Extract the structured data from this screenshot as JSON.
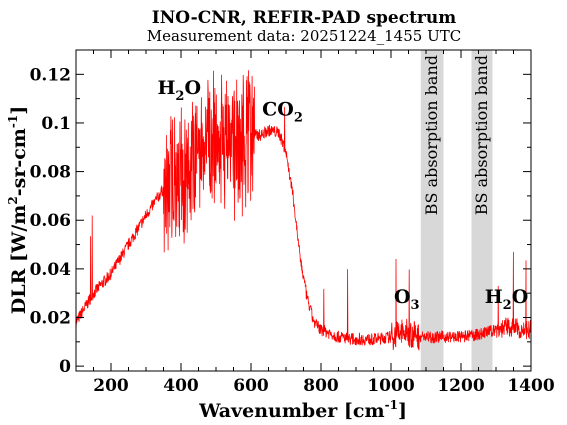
{
  "chart_data": {
    "type": "line",
    "title": "INO-CNR, REFIR-PAD spectrum",
    "subtitle": "Measurement data: 20251224_1455 UTC",
    "xlabel": {
      "main": "Wavenumber [cm",
      "sup": "-1",
      "close": "]"
    },
    "ylabel": {
      "main": "DLR [W/m",
      "sup1": "2",
      "mid": "-sr-cm",
      "sup2": "-1",
      "close": "]"
    },
    "xlim": [
      100,
      1400
    ],
    "ylim": [
      -0.002,
      0.13
    ],
    "xticks": [
      200,
      400,
      600,
      800,
      1000,
      1200,
      1400
    ],
    "xtick_labels": [
      "200",
      "400",
      "600",
      "800",
      "1000",
      "1200",
      "1400"
    ],
    "yticks": [
      0,
      0.02,
      0.04,
      0.06,
      0.08,
      0.1,
      0.12
    ],
    "ytick_labels": [
      "0",
      "0.02",
      "0.04",
      "0.06",
      "0.08",
      "0.1",
      "0.12"
    ],
    "grid": false,
    "legend": "none",
    "series": [
      {
        "color": "#ff0000",
        "x": [
          100,
          150,
          200,
          250,
          300,
          350,
          400,
          450,
          500,
          550,
          600,
          630,
          650,
          680,
          700,
          720,
          740,
          760,
          780,
          800,
          850,
          900,
          950,
          1000,
          1030,
          1060,
          1090,
          1150,
          1200,
          1250,
          1300,
          1330,
          1350,
          1380,
          1400
        ],
        "y": [
          0.018,
          0.03,
          0.038,
          0.05,
          0.062,
          0.073,
          0.081,
          0.088,
          0.092,
          0.094,
          0.095,
          0.095,
          0.097,
          0.096,
          0.088,
          0.07,
          0.045,
          0.028,
          0.018,
          0.015,
          0.012,
          0.011,
          0.011,
          0.012,
          0.014,
          0.013,
          0.012,
          0.012,
          0.012,
          0.013,
          0.015,
          0.016,
          0.016,
          0.015,
          0.015
        ]
      }
    ],
    "annotations": [
      {
        "main": "H",
        "sub": "2",
        "tail": "O",
        "x": 395,
        "y": 0.112
      },
      {
        "main": "CO",
        "sub": "2",
        "tail": "",
        "x": 690,
        "y": 0.103
      },
      {
        "main": "O",
        "sub": "3",
        "tail": "",
        "x": 1045,
        "y": 0.026
      },
      {
        "main": "H",
        "sub": "2",
        "tail": "O",
        "x": 1330,
        "y": 0.026
      }
    ],
    "bands": [
      {
        "label": "BS absorption band",
        "x0": 1085,
        "x1": 1150
      },
      {
        "label": "BS absorption band",
        "x0": 1230,
        "x1": 1290
      }
    ]
  }
}
